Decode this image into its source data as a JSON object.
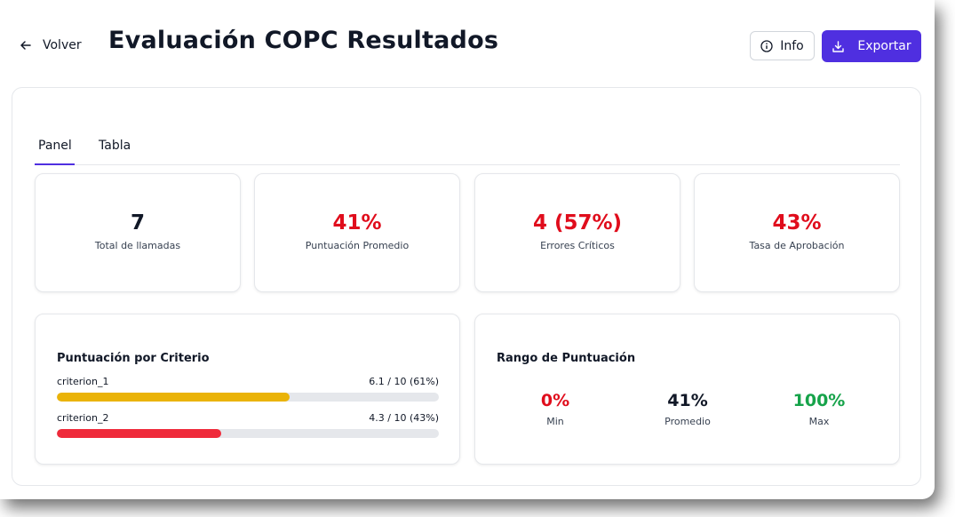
{
  "header": {
    "back_label": "Volver",
    "title": "Evaluación COPC Resultados",
    "info_label": "Info",
    "export_label": "Exportar",
    "accent": "#4f2fe0"
  },
  "tabs": [
    {
      "label": "Panel",
      "active": true
    },
    {
      "label": "Tabla",
      "active": false
    }
  ],
  "stats": [
    {
      "value": "7",
      "label": "Total de llamadas",
      "color": "#111827"
    },
    {
      "value": "41%",
      "label": "Puntuación Promedio",
      "color": "#e00d1c"
    },
    {
      "value": "4 (57%)",
      "label": "Errores Críticos",
      "color": "#e00d1c"
    },
    {
      "value": "43%",
      "label": "Tasa de Aprobación",
      "color": "#e00d1c"
    }
  ],
  "criteria_panel": {
    "title": "Puntuación por Criterio",
    "items": [
      {
        "name": "criterion_1",
        "score": "6.1 / 10 (61%)",
        "fraction": 0.61,
        "color": "#eab308"
      },
      {
        "name": "criterion_2",
        "score": "4.3 / 10 (43%)",
        "fraction": 0.43,
        "color": "#ef2a3a"
      }
    ]
  },
  "range_panel": {
    "title": "Rango de Puntuación",
    "min": {
      "value": "0%",
      "label": "Min"
    },
    "avg": {
      "value": "41%",
      "label": "Promedio"
    },
    "max": {
      "value": "100%",
      "label": "Max"
    }
  }
}
